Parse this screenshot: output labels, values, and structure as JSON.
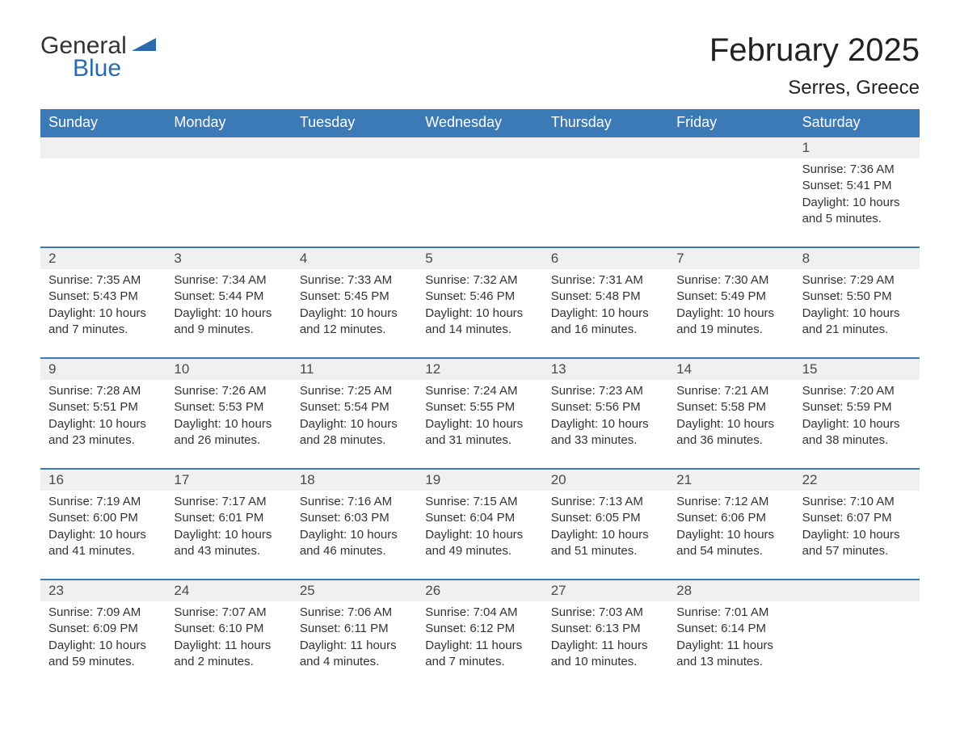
{
  "logo": {
    "text1": "General",
    "text2": "Blue",
    "color": "#2a6bb0"
  },
  "title": "February 2025",
  "location": "Serres, Greece",
  "colors": {
    "header_bg": "#3b79b7",
    "header_text": "#ffffff",
    "daynum_bg": "#f0f0f0",
    "border": "#3b79b7",
    "body_text": "#333333"
  },
  "weekdays": [
    "Sunday",
    "Monday",
    "Tuesday",
    "Wednesday",
    "Thursday",
    "Friday",
    "Saturday"
  ],
  "weeks": [
    {
      "days": [
        {
          "num": "",
          "lines": []
        },
        {
          "num": "",
          "lines": []
        },
        {
          "num": "",
          "lines": []
        },
        {
          "num": "",
          "lines": []
        },
        {
          "num": "",
          "lines": []
        },
        {
          "num": "",
          "lines": []
        },
        {
          "num": "1",
          "lines": [
            "Sunrise: 7:36 AM",
            "Sunset: 5:41 PM",
            "Daylight: 10 hours and 5 minutes."
          ]
        }
      ]
    },
    {
      "days": [
        {
          "num": "2",
          "lines": [
            "Sunrise: 7:35 AM",
            "Sunset: 5:43 PM",
            "Daylight: 10 hours and 7 minutes."
          ]
        },
        {
          "num": "3",
          "lines": [
            "Sunrise: 7:34 AM",
            "Sunset: 5:44 PM",
            "Daylight: 10 hours and 9 minutes."
          ]
        },
        {
          "num": "4",
          "lines": [
            "Sunrise: 7:33 AM",
            "Sunset: 5:45 PM",
            "Daylight: 10 hours and 12 minutes."
          ]
        },
        {
          "num": "5",
          "lines": [
            "Sunrise: 7:32 AM",
            "Sunset: 5:46 PM",
            "Daylight: 10 hours and 14 minutes."
          ]
        },
        {
          "num": "6",
          "lines": [
            "Sunrise: 7:31 AM",
            "Sunset: 5:48 PM",
            "Daylight: 10 hours and 16 minutes."
          ]
        },
        {
          "num": "7",
          "lines": [
            "Sunrise: 7:30 AM",
            "Sunset: 5:49 PM",
            "Daylight: 10 hours and 19 minutes."
          ]
        },
        {
          "num": "8",
          "lines": [
            "Sunrise: 7:29 AM",
            "Sunset: 5:50 PM",
            "Daylight: 10 hours and 21 minutes."
          ]
        }
      ]
    },
    {
      "days": [
        {
          "num": "9",
          "lines": [
            "Sunrise: 7:28 AM",
            "Sunset: 5:51 PM",
            "Daylight: 10 hours and 23 minutes."
          ]
        },
        {
          "num": "10",
          "lines": [
            "Sunrise: 7:26 AM",
            "Sunset: 5:53 PM",
            "Daylight: 10 hours and 26 minutes."
          ]
        },
        {
          "num": "11",
          "lines": [
            "Sunrise: 7:25 AM",
            "Sunset: 5:54 PM",
            "Daylight: 10 hours and 28 minutes."
          ]
        },
        {
          "num": "12",
          "lines": [
            "Sunrise: 7:24 AM",
            "Sunset: 5:55 PM",
            "Daylight: 10 hours and 31 minutes."
          ]
        },
        {
          "num": "13",
          "lines": [
            "Sunrise: 7:23 AM",
            "Sunset: 5:56 PM",
            "Daylight: 10 hours and 33 minutes."
          ]
        },
        {
          "num": "14",
          "lines": [
            "Sunrise: 7:21 AM",
            "Sunset: 5:58 PM",
            "Daylight: 10 hours and 36 minutes."
          ]
        },
        {
          "num": "15",
          "lines": [
            "Sunrise: 7:20 AM",
            "Sunset: 5:59 PM",
            "Daylight: 10 hours and 38 minutes."
          ]
        }
      ]
    },
    {
      "days": [
        {
          "num": "16",
          "lines": [
            "Sunrise: 7:19 AM",
            "Sunset: 6:00 PM",
            "Daylight: 10 hours and 41 minutes."
          ]
        },
        {
          "num": "17",
          "lines": [
            "Sunrise: 7:17 AM",
            "Sunset: 6:01 PM",
            "Daylight: 10 hours and 43 minutes."
          ]
        },
        {
          "num": "18",
          "lines": [
            "Sunrise: 7:16 AM",
            "Sunset: 6:03 PM",
            "Daylight: 10 hours and 46 minutes."
          ]
        },
        {
          "num": "19",
          "lines": [
            "Sunrise: 7:15 AM",
            "Sunset: 6:04 PM",
            "Daylight: 10 hours and 49 minutes."
          ]
        },
        {
          "num": "20",
          "lines": [
            "Sunrise: 7:13 AM",
            "Sunset: 6:05 PM",
            "Daylight: 10 hours and 51 minutes."
          ]
        },
        {
          "num": "21",
          "lines": [
            "Sunrise: 7:12 AM",
            "Sunset: 6:06 PM",
            "Daylight: 10 hours and 54 minutes."
          ]
        },
        {
          "num": "22",
          "lines": [
            "Sunrise: 7:10 AM",
            "Sunset: 6:07 PM",
            "Daylight: 10 hours and 57 minutes."
          ]
        }
      ]
    },
    {
      "days": [
        {
          "num": "23",
          "lines": [
            "Sunrise: 7:09 AM",
            "Sunset: 6:09 PM",
            "Daylight: 10 hours and 59 minutes."
          ]
        },
        {
          "num": "24",
          "lines": [
            "Sunrise: 7:07 AM",
            "Sunset: 6:10 PM",
            "Daylight: 11 hours and 2 minutes."
          ]
        },
        {
          "num": "25",
          "lines": [
            "Sunrise: 7:06 AM",
            "Sunset: 6:11 PM",
            "Daylight: 11 hours and 4 minutes."
          ]
        },
        {
          "num": "26",
          "lines": [
            "Sunrise: 7:04 AM",
            "Sunset: 6:12 PM",
            "Daylight: 11 hours and 7 minutes."
          ]
        },
        {
          "num": "27",
          "lines": [
            "Sunrise: 7:03 AM",
            "Sunset: 6:13 PM",
            "Daylight: 11 hours and 10 minutes."
          ]
        },
        {
          "num": "28",
          "lines": [
            "Sunrise: 7:01 AM",
            "Sunset: 6:14 PM",
            "Daylight: 11 hours and 13 minutes."
          ]
        },
        {
          "num": "",
          "lines": []
        }
      ]
    }
  ]
}
